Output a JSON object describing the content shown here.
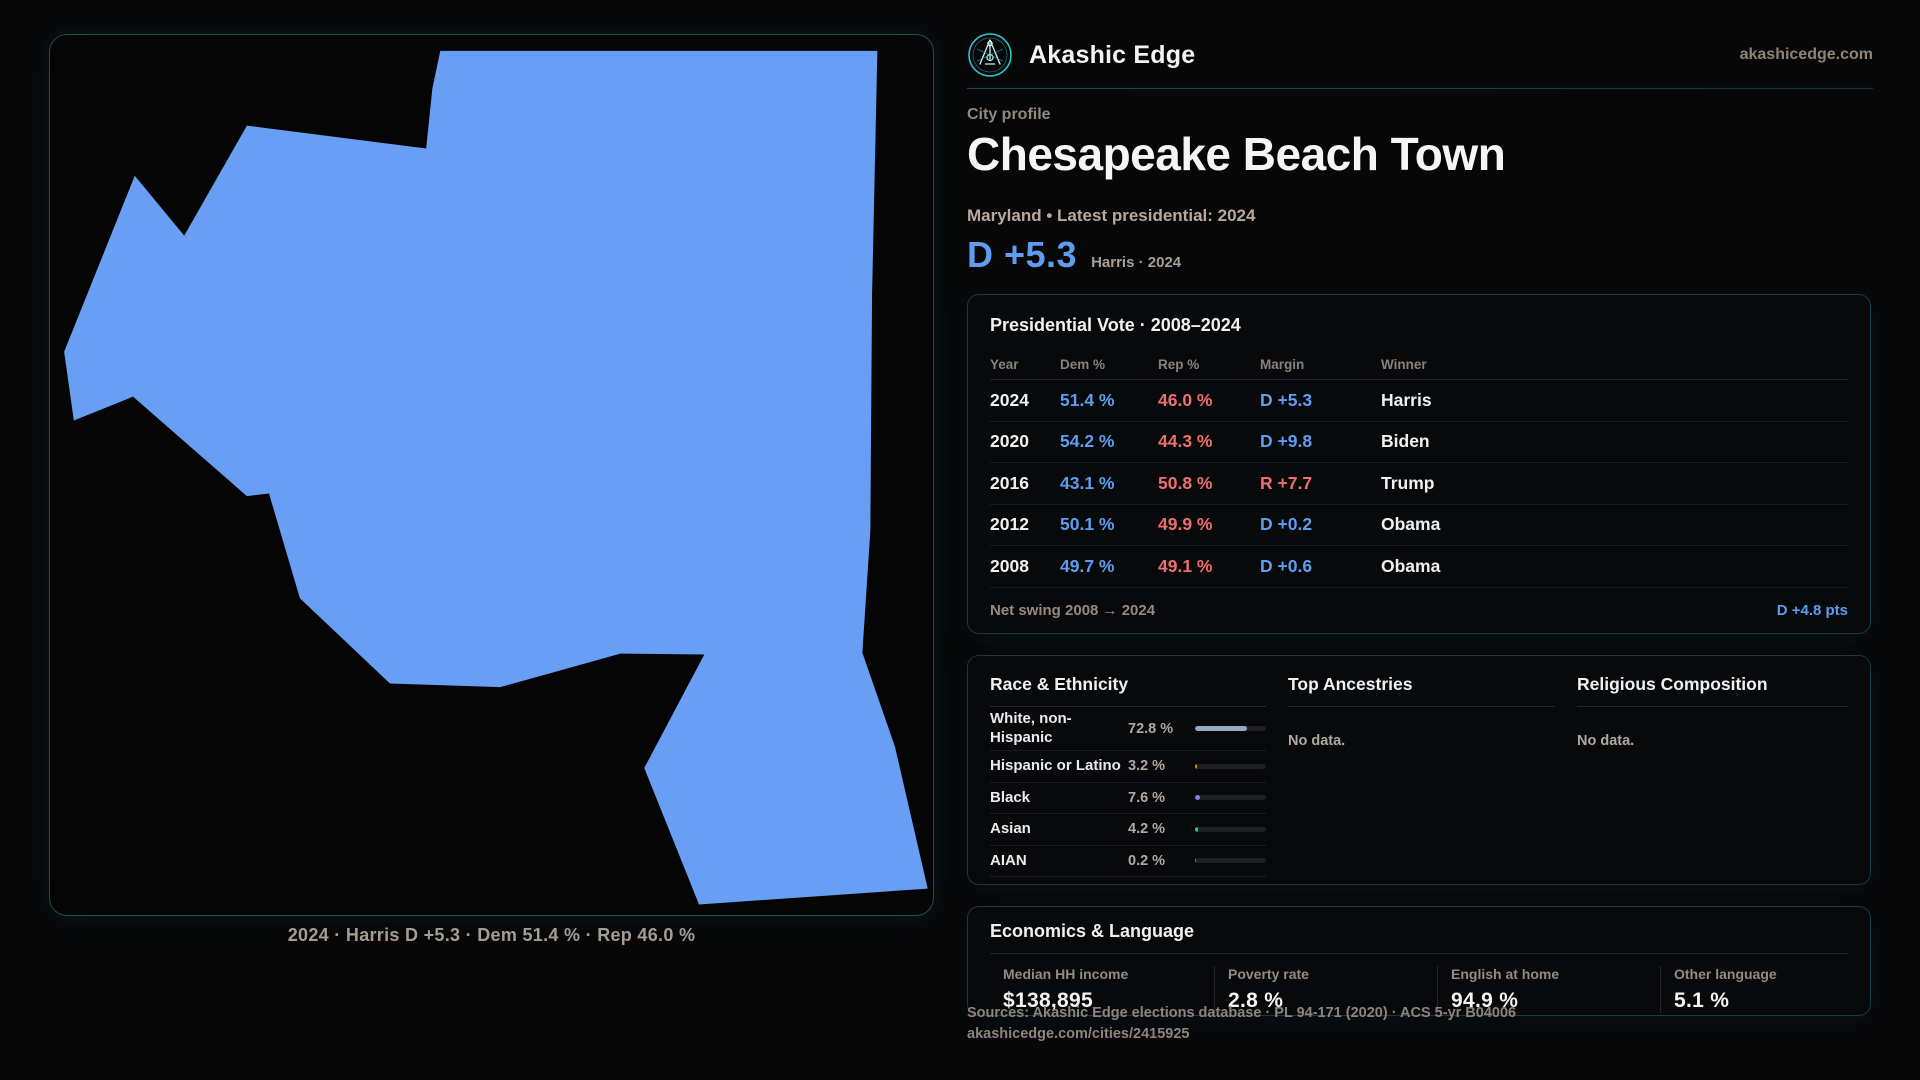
{
  "brand": {
    "name": "Akashic Edge",
    "domain": "akashicedge.com"
  },
  "profile": {
    "eyebrow": "City profile",
    "title": "Chesapeake Beach Town",
    "subtitle": "Maryland • Latest presidential: 2024",
    "margin_headline": "D +5.3",
    "margin_subtext": "Harris · 2024"
  },
  "map": {
    "fill_color": "#689ff5",
    "caption": "2024 · Harris D +5.3 · Dem 51.4 % · Rep 46.0 %"
  },
  "vote_table": {
    "title": "Presidential Vote · 2008–2024",
    "columns": {
      "year": "Year",
      "dem": "Dem %",
      "rep": "Rep %",
      "margin": "Margin",
      "winner": "Winner"
    },
    "rows": [
      {
        "year": "2024",
        "dem": "51.4 %",
        "rep": "46.0 %",
        "margin": "D +5.3",
        "margin_color": "#5f9df1",
        "winner": "Harris"
      },
      {
        "year": "2020",
        "dem": "54.2 %",
        "rep": "44.3 %",
        "margin": "D +9.8",
        "margin_color": "#5f9df1",
        "winner": "Biden"
      },
      {
        "year": "2016",
        "dem": "43.1 %",
        "rep": "50.8 %",
        "margin": "R +7.7",
        "margin_color": "#ef6e6e",
        "winner": "Trump"
      },
      {
        "year": "2012",
        "dem": "50.1 %",
        "rep": "49.9 %",
        "margin": "D +0.2",
        "margin_color": "#5f9df1",
        "winner": "Obama"
      },
      {
        "year": "2008",
        "dem": "49.7 %",
        "rep": "49.1 %",
        "margin": "D +0.6",
        "margin_color": "#5f9df1",
        "winner": "Obama"
      }
    ],
    "net_swing_label": "Net swing 2008 → 2024",
    "net_swing_value": "D +4.8 pts"
  },
  "demographics": {
    "race": {
      "title": "Race & Ethnicity",
      "rows": [
        {
          "label": "White, non-Hispanic",
          "value": "72.8 %",
          "pct": 72.8,
          "color": "#93a9c7"
        },
        {
          "label": "Hispanic or Latino",
          "value": "3.2 %",
          "pct": 3.2,
          "color": "#d0912c"
        },
        {
          "label": "Black",
          "value": "7.6 %",
          "pct": 7.6,
          "color": "#8d7df0"
        },
        {
          "label": "Asian",
          "value": "4.2 %",
          "pct": 4.2,
          "color": "#2dc189"
        },
        {
          "label": "AIAN",
          "value": "0.2 %",
          "pct": 0.2,
          "color": "#8a8a8a"
        }
      ]
    },
    "ancestries": {
      "title": "Top Ancestries",
      "empty": "No data."
    },
    "religion": {
      "title": "Religious Composition",
      "empty": "No data."
    }
  },
  "economics": {
    "title": "Economics & Language",
    "stats": [
      {
        "label": "Median HH income",
        "value": "$138,895"
      },
      {
        "label": "Poverty rate",
        "value": "2.8 %"
      },
      {
        "label": "English at home",
        "value": "94.9 %"
      },
      {
        "label": "Other language",
        "value": "5.1 %"
      }
    ]
  },
  "footer": {
    "line1": "Sources: Akashic Edge elections database · PL 94-171 (2020) · ACS 5-yr B04006",
    "line2": "akashicedge.com/cities/2415925"
  },
  "colors": {
    "accent_teal": "#2fc4d2",
    "dem_blue": "#5f9df1",
    "rep_red": "#ef6e6e"
  }
}
